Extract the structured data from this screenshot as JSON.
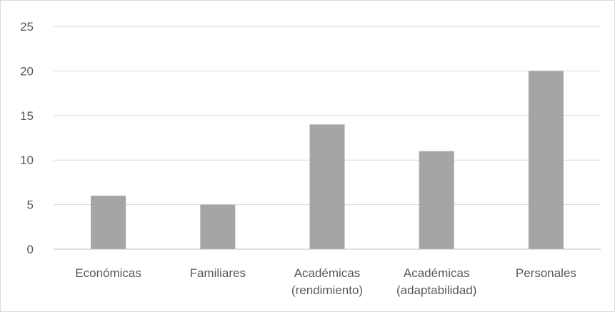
{
  "chart_data": {
    "type": "bar",
    "categories": [
      [
        "Económicas"
      ],
      [
        "Familiares"
      ],
      [
        "Académicas",
        "(rendimiento)"
      ],
      [
        "Académicas",
        "(adaptabilidad)"
      ],
      [
        "Personales"
      ]
    ],
    "values": [
      6,
      5,
      14,
      11,
      20
    ],
    "ylim": [
      0,
      25
    ],
    "yticks": [
      0,
      5,
      10,
      15,
      20,
      25
    ],
    "grid": true,
    "legend": "none",
    "colors": {
      "bar": "#a5a5a5",
      "grid": "#d9d9d9",
      "axis": "#bfbfbf",
      "text": "#595959"
    }
  }
}
